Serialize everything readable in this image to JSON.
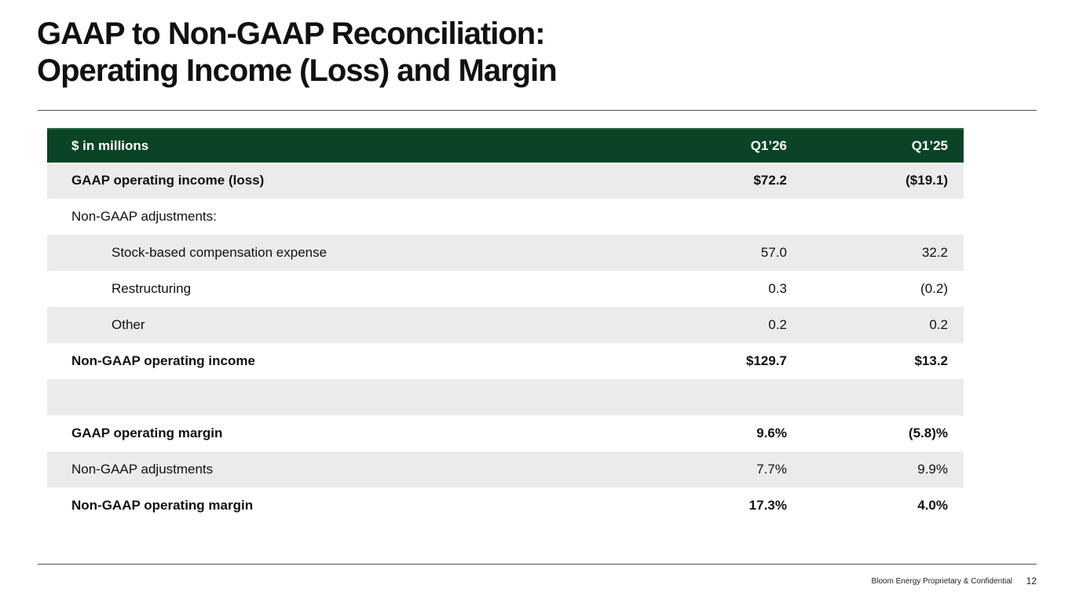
{
  "title": {
    "line1": "GAAP to Non-GAAP Reconciliation:",
    "line2": "Operating Income (Loss) and Margin"
  },
  "table": {
    "headers": [
      "$ in millions",
      "Q1’26",
      "Q1’25"
    ],
    "rows": [
      {
        "label": "GAAP operating income (loss)",
        "q126": "$72.2",
        "q125": "($19.1)"
      },
      {
        "label": "Non-GAAP adjustments:",
        "q126": "",
        "q125": ""
      },
      {
        "label": "Stock-based compensation expense",
        "q126": "57.0",
        "q125": "32.2"
      },
      {
        "label": "Restructuring",
        "q126": "0.3",
        "q125": "(0.2)"
      },
      {
        "label": "Other",
        "q126": "0.2",
        "q125": "0.2"
      },
      {
        "label": "Non-GAAP operating income",
        "q126": "$129.7",
        "q125": "$13.2"
      },
      {
        "label": "",
        "q126": "",
        "q125": ""
      },
      {
        "label": "GAAP operating margin",
        "q126": "9.6%",
        "q125": "(5.8)%"
      },
      {
        "label": "Non-GAAP adjustments",
        "q126": "7.7%",
        "q125": "9.9%"
      },
      {
        "label": "Non-GAAP operating margin",
        "q126": "17.3%",
        "q125": "4.0%"
      }
    ]
  },
  "footer": {
    "text": "Bloom Energy Proprietary & Confidential",
    "page_number": "12"
  },
  "colors": {
    "header_bg": "#0a4325",
    "row_shade": "#ebebeb"
  }
}
